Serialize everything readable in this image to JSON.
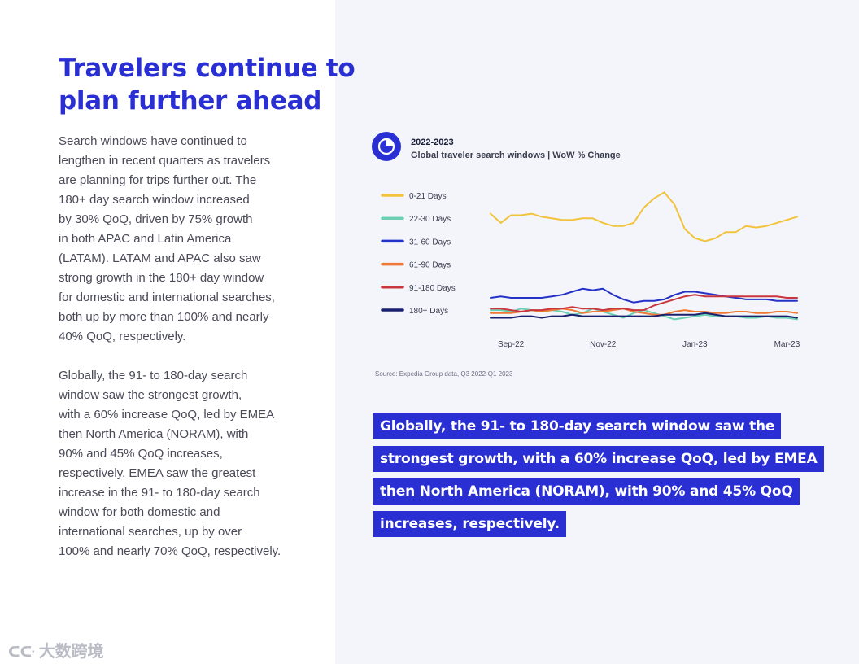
{
  "headline": [
    "Travelers continue to",
    "plan further ahead"
  ],
  "paragraph1": [
    "Search windows have continued to",
    "lengthen in recent quarters as travelers",
    "are planning for trips further out. The",
    "180+ day search window increased",
    "by 30% QoQ, driven by 75% growth",
    "in both APAC and Latin America",
    "(LATAM). LATAM and APAC also saw",
    "strong growth in the 180+ day window",
    "for domestic and international searches,",
    "both up by more than 100% and nearly",
    "40% QoQ, respectively."
  ],
  "paragraph2": [
    "Globally, the 91- to 180-day search",
    "window saw the strongest growth,",
    "with a 60% increase QoQ, led by EMEA",
    "then North America (NORAM), with",
    "90% and 45% QoQ increases,",
    "respectively. EMEA saw the greatest",
    "increase in the 91- to 180-day search",
    "window for both domestic and",
    "international searches, up by over",
    "100% and nearly 70% QoQ, respectively."
  ],
  "chart_header": {
    "year": "2022-2023",
    "subtitle": "Global traveler search windows | WoW % Change",
    "badge_icon": "pie-chart-icon"
  },
  "source": "Source: Expedia Group data, Q3 2022-Q1 2023",
  "highlight": [
    "Globally, the 91- to 180-day search window saw the",
    "strongest growth, with a 60% increase QoQ, led by EMEA",
    "then North America (NORAM), with 90% and 45% QoQ",
    "increases, respectively."
  ],
  "watermark": "大数跨境",
  "colors": {
    "brand": "#2a2fd4",
    "panel": "#f4f5fa"
  },
  "chart_data": {
    "type": "line",
    "title": "Global traveler search windows | WoW % Change",
    "xlabel": "",
    "ylabel": "",
    "x_ticks": [
      "Sep-22",
      "Nov-22",
      "Jan-23",
      "Mar-23"
    ],
    "x_tick_index": [
      2,
      11,
      20,
      29
    ],
    "ylim": [
      0,
      100
    ],
    "grid": false,
    "legend_position": "left",
    "series": [
      {
        "name": "0-21 Days",
        "color": "#f2c33c",
        "values": [
          72,
          66,
          71,
          71,
          72,
          70,
          69,
          68,
          68,
          69,
          69,
          66,
          64,
          64,
          66,
          76,
          82,
          86,
          78,
          62,
          56,
          54,
          56,
          60,
          60,
          64,
          63,
          64,
          66,
          68,
          70
        ]
      },
      {
        "name": "22-30 Days",
        "color": "#6ccfb3",
        "values": [
          9,
          9,
          8,
          10,
          9,
          8,
          9,
          8,
          6,
          7,
          10,
          8,
          6,
          4,
          7,
          9,
          7,
          5,
          3,
          4,
          5,
          6,
          5,
          5,
          5,
          4,
          4,
          5,
          4,
          4,
          3
        ]
      },
      {
        "name": "31-60 Days",
        "color": "#2532c8",
        "values": [
          17,
          18,
          17,
          17,
          17,
          17,
          18,
          19,
          21,
          23,
          22,
          23,
          19,
          16,
          14,
          15,
          15,
          16,
          19,
          21,
          21,
          20,
          19,
          18,
          17,
          16,
          16,
          16,
          15,
          15,
          15
        ]
      },
      {
        "name": "61-90 Days",
        "color": "#f07a35",
        "values": [
          7,
          7,
          7,
          8,
          9,
          8,
          9,
          10,
          9,
          7,
          8,
          8,
          9,
          10,
          8,
          7,
          6,
          6,
          8,
          9,
          8,
          8,
          7,
          7,
          8,
          8,
          7,
          7,
          8,
          8,
          7
        ]
      },
      {
        "name": "91-180 Days",
        "color": "#c9363e",
        "values": [
          10,
          10,
          9,
          8,
          9,
          9,
          10,
          10,
          11,
          10,
          10,
          9,
          10,
          10,
          9,
          9,
          12,
          14,
          16,
          18,
          19,
          18,
          18,
          18,
          18,
          18,
          18,
          18,
          18,
          17,
          17
        ]
      },
      {
        "name": "180+ Days",
        "color": "#1a1f6e",
        "values": [
          4,
          4,
          4,
          5,
          5,
          4,
          5,
          5,
          6,
          5,
          5,
          5,
          5,
          5,
          5,
          5,
          5,
          6,
          6,
          6,
          6,
          7,
          6,
          5,
          5,
          5,
          5,
          5,
          5,
          5,
          4
        ]
      }
    ]
  }
}
